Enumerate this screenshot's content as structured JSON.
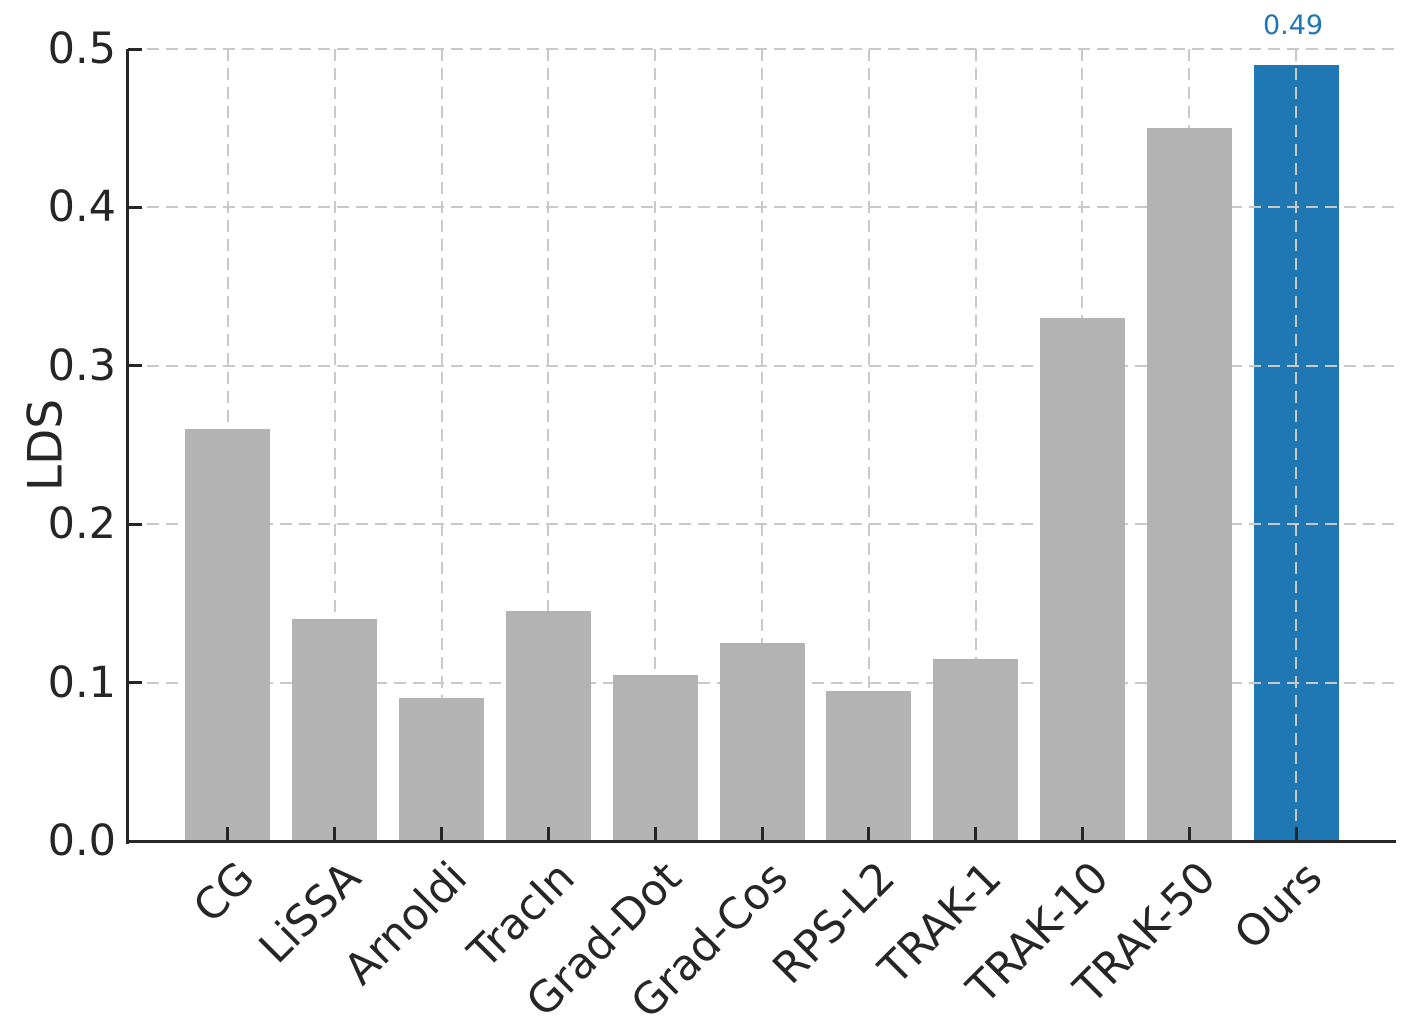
{
  "chart_data": {
    "type": "bar",
    "title": "",
    "xlabel": "",
    "ylabel": "LDS",
    "categories": [
      "CG",
      "LiSSA",
      "Arnoldi",
      "TracIn",
      "Grad-Dot",
      "Grad-Cos",
      "RPS-L2",
      "TRAK-1",
      "TRAK-10",
      "TRAK-50",
      "Ours"
    ],
    "values": [
      0.26,
      0.14,
      0.09,
      0.145,
      0.105,
      0.125,
      0.095,
      0.115,
      0.33,
      0.45,
      0.49
    ],
    "ylim": [
      0,
      0.5
    ],
    "yticks": [
      0,
      0.1,
      0.2,
      0.3,
      0.4,
      0.5
    ],
    "ytick_labels": [
      "0.0",
      "0.1",
      "0.2",
      "0.3",
      "0.4",
      "0.5"
    ],
    "x_tick_rotation_deg": 45,
    "grid": {
      "style": "dashed",
      "axes": "both",
      "over_highlight_bar": true,
      "behind_default_bars": true
    },
    "legend": "none",
    "highlight_index": 10,
    "annotation": {
      "text": "0.49",
      "target_category": "Ours",
      "color": "#1f77b4"
    },
    "colors": {
      "bar_default": "#b3b3b3",
      "bar_highlight": "#1f77b4",
      "grid": "#c9c9c9",
      "axis": "#262626",
      "tick_label": "#262626",
      "background": "#ffffff"
    }
  }
}
